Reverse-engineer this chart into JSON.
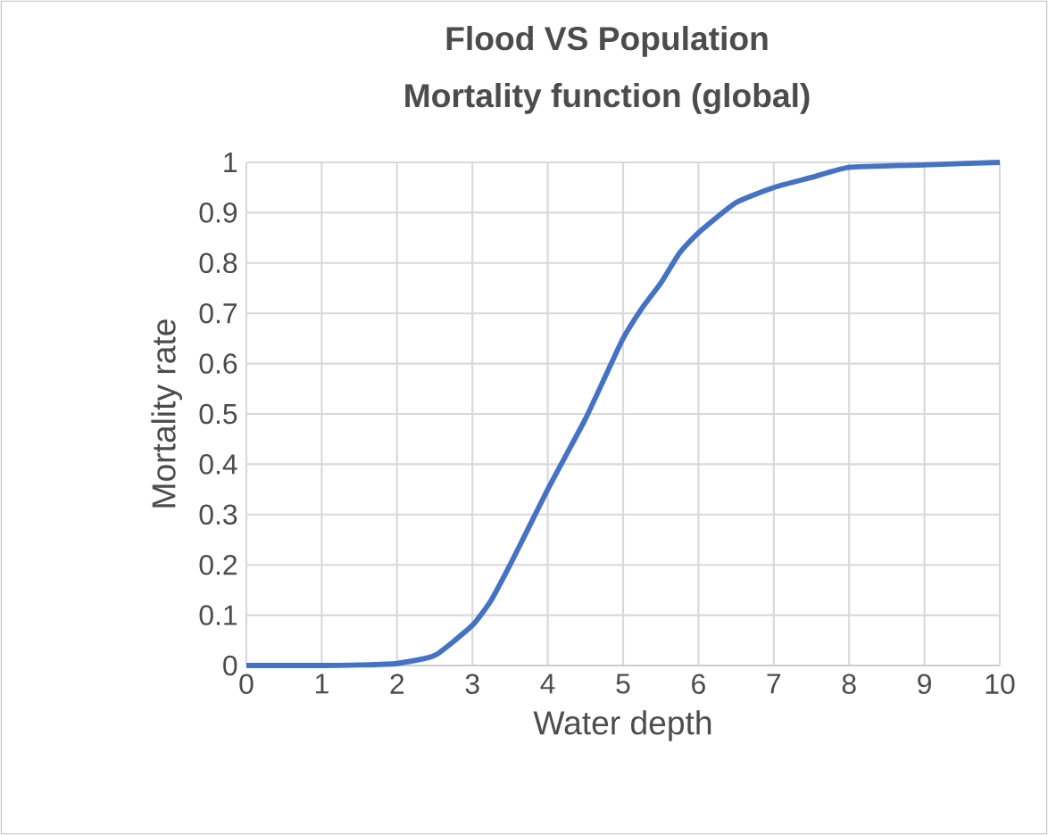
{
  "chart_data": {
    "type": "line",
    "title": "Flood VS Population",
    "subtitle": "Mortality function (global)",
    "xlabel": "Water depth",
    "ylabel": "Mortality rate",
    "x": [
      0,
      1,
      1.5,
      2,
      2.5,
      3,
      3.25,
      3.5,
      3.75,
      4,
      4.25,
      4.5,
      4.75,
      5,
      5.25,
      5.5,
      5.75,
      6,
      6.5,
      7,
      7.5,
      8,
      9,
      10
    ],
    "series": [
      {
        "color": "#4472c4",
        "values": [
          0,
          0,
          0.001,
          0.004,
          0.02,
          0.08,
          0.13,
          0.2,
          0.275,
          0.35,
          0.42,
          0.49,
          0.57,
          0.65,
          0.71,
          0.76,
          0.82,
          0.86,
          0.92,
          0.95,
          0.97,
          0.99,
          0.995,
          1
        ]
      }
    ],
    "xlim": [
      0,
      10
    ],
    "ylim": [
      0,
      1
    ],
    "xticks": [
      0,
      1,
      2,
      3,
      4,
      5,
      6,
      7,
      8,
      9,
      10
    ],
    "yticks": [
      0,
      0.1,
      0.2,
      0.3,
      0.4,
      0.5,
      0.6,
      0.7,
      0.8,
      0.9,
      1
    ],
    "grid": true,
    "marker": "none",
    "line_style": "solid"
  }
}
